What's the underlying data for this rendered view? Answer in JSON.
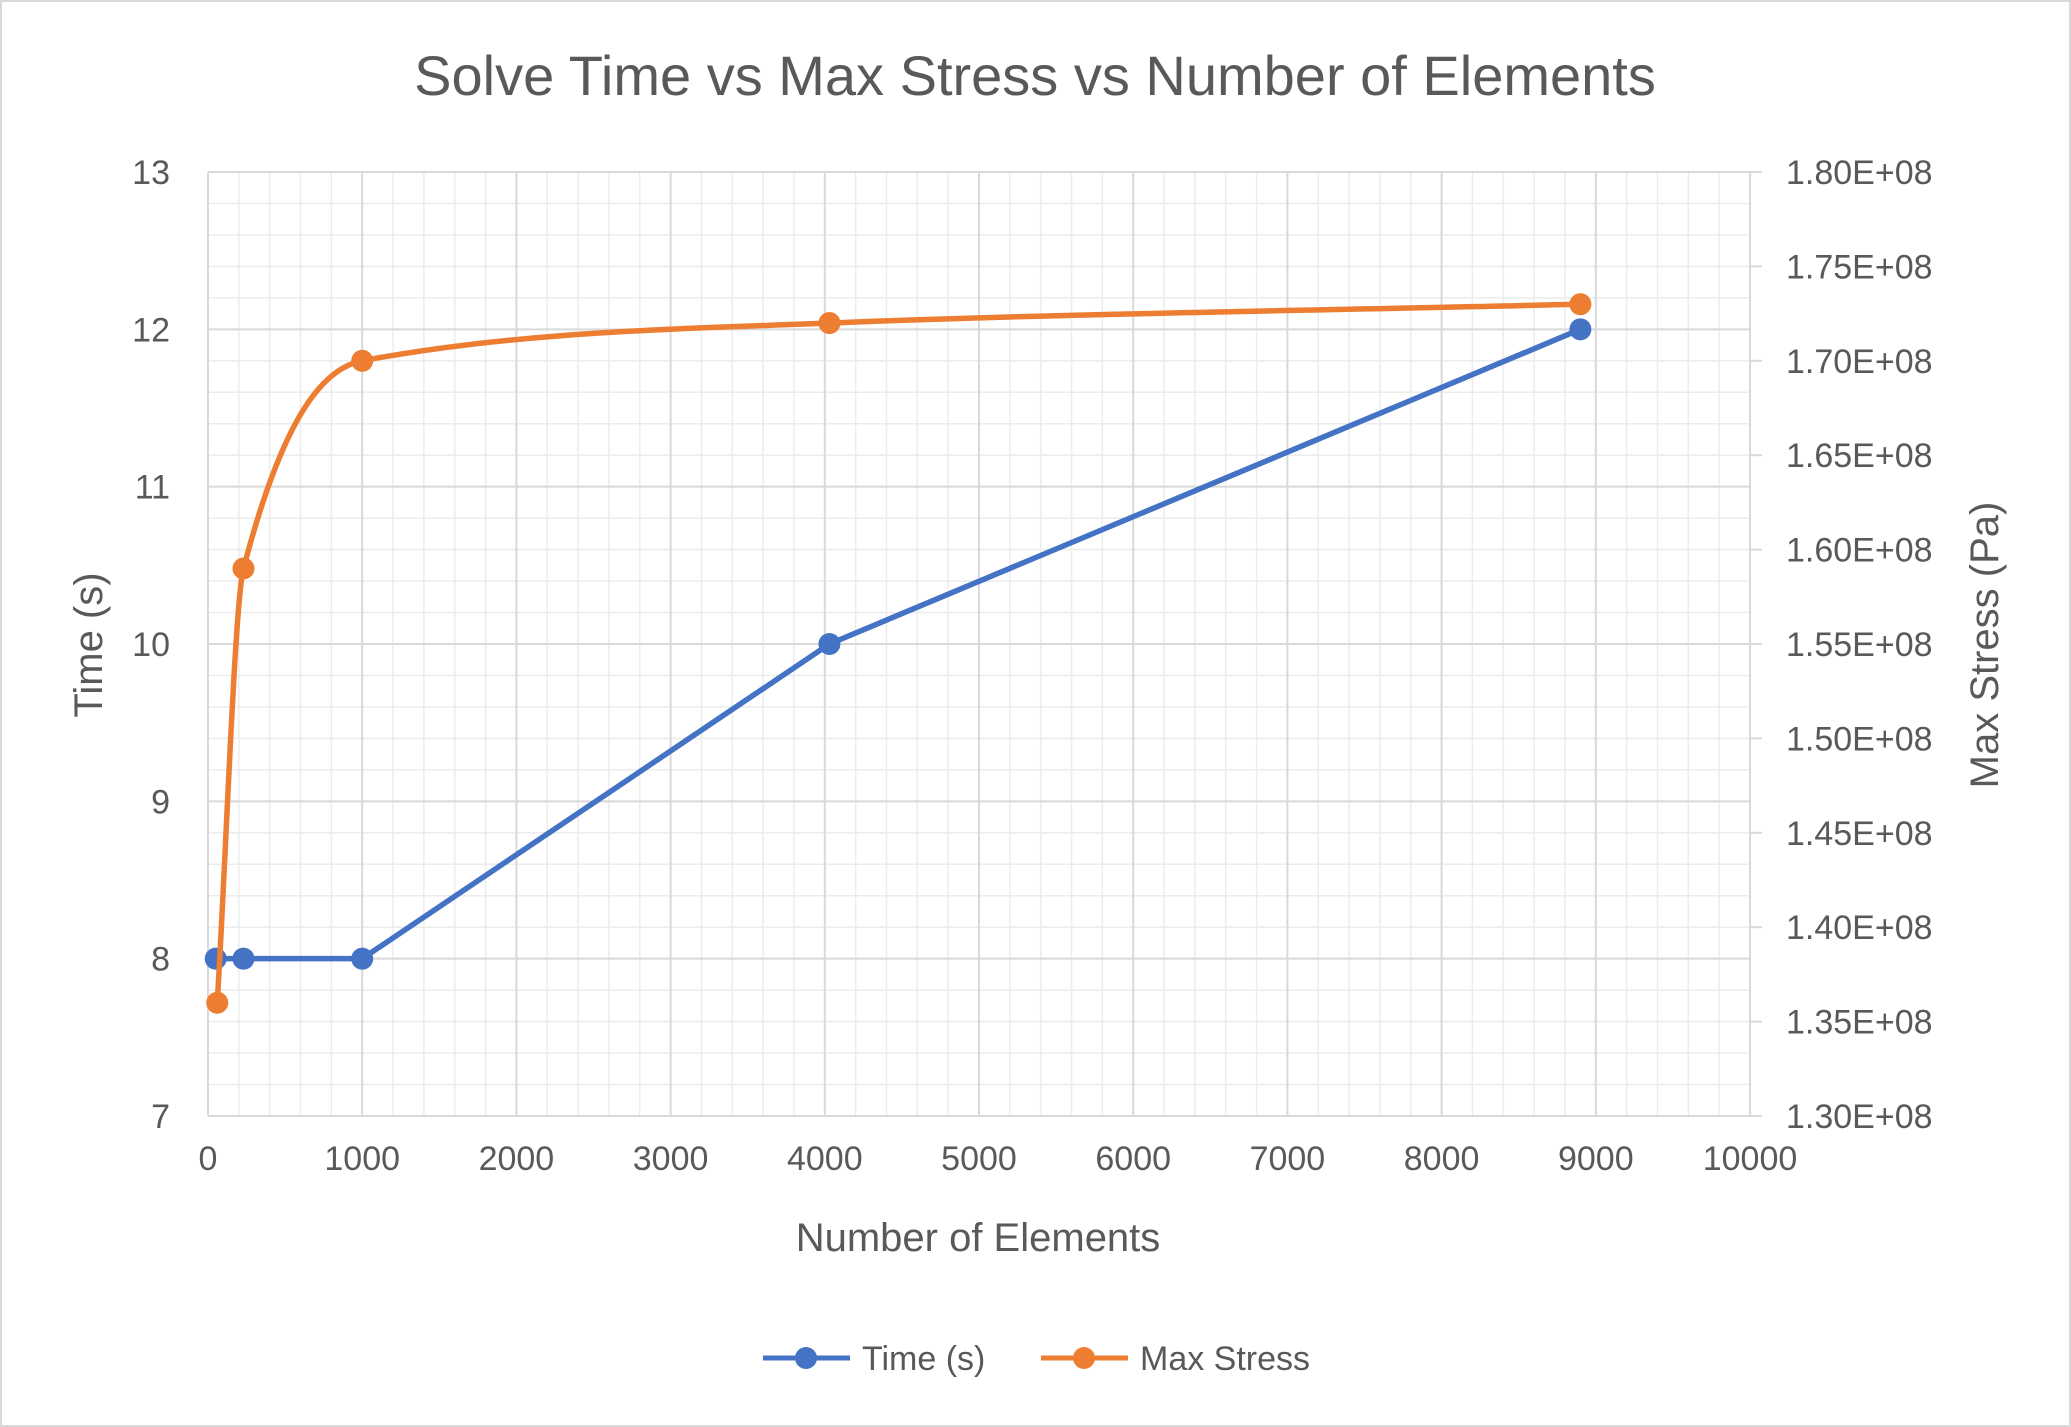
{
  "chart_data": {
    "type": "line",
    "title": "Solve Time vs Max Stress vs Number of Elements",
    "xlabel": "Number of Elements",
    "ylabel": "Time (s)",
    "y2label": "Max Stress (Pa)",
    "xlim": [
      0,
      10000
    ],
    "ylim": [
      7,
      13
    ],
    "y2lim": [
      130000000,
      180000000
    ],
    "x_ticks": [
      "0",
      "1000",
      "2000",
      "3000",
      "4000",
      "5000",
      "6000",
      "7000",
      "8000",
      "9000",
      "10000"
    ],
    "y_ticks": [
      "7",
      "8",
      "9",
      "10",
      "11",
      "12",
      "13"
    ],
    "y2_ticks": [
      "1.30E+08",
      "1.35E+08",
      "1.40E+08",
      "1.45E+08",
      "1.50E+08",
      "1.55E+08",
      "1.60E+08",
      "1.65E+08",
      "1.70E+08",
      "1.75E+08",
      "1.80E+08"
    ],
    "grid": true,
    "legend_position": "bottom",
    "series": [
      {
        "name": "Time (s)",
        "axis": "left",
        "color": "#4472c4",
        "smooth": false,
        "x": [
          50,
          230,
          1000,
          4030,
          8900
        ],
        "y": [
          8,
          8,
          8,
          10,
          12
        ]
      },
      {
        "name": "Max Stress",
        "axis": "right",
        "color": "#ed7d31",
        "smooth": true,
        "x": [
          60,
          230,
          1000,
          4030,
          8900
        ],
        "y": [
          136000000,
          159000000,
          170000000,
          172000000,
          173000000
        ]
      }
    ]
  }
}
